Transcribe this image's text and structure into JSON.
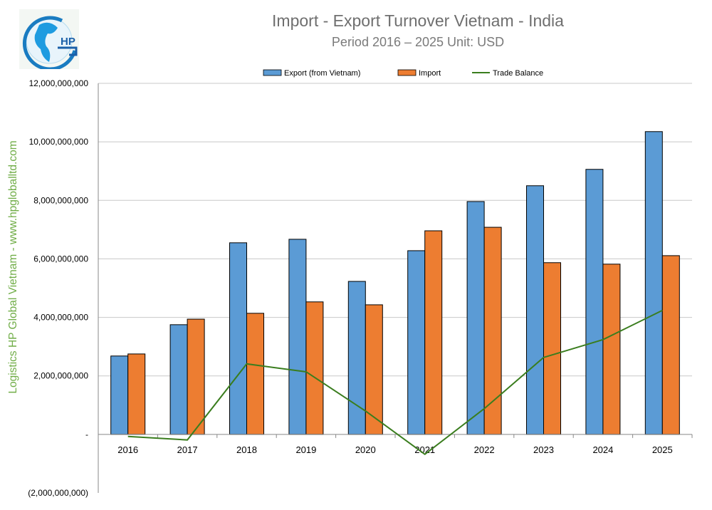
{
  "logo_text": "HP",
  "side_label": "Logistics HP Global Vietnam - www.hpgloballtd.com",
  "chart_data": {
    "type": "bar",
    "title": "Import - Export Turnover Vietnam - India",
    "subtitle": "Period 2016 – 2025  Unit: USD",
    "categories": [
      "2016",
      "2017",
      "2018",
      "2019",
      "2020",
      "2021",
      "2022",
      "2023",
      "2024",
      "2025"
    ],
    "series": [
      {
        "name": "Export (from Vietnam)",
        "type": "bar",
        "color": "#5b9bd5",
        "values": [
          2680000000,
          3750000000,
          6550000000,
          6670000000,
          5230000000,
          6280000000,
          7960000000,
          8500000000,
          9060000000,
          10350000000
        ]
      },
      {
        "name": "Import",
        "type": "bar",
        "color": "#ed7d31",
        "values": [
          2750000000,
          3940000000,
          4140000000,
          4530000000,
          4430000000,
          6960000000,
          7080000000,
          5870000000,
          5820000000,
          6110000000
        ]
      },
      {
        "name": "Trade Balance",
        "type": "line",
        "color": "#3a7d1e",
        "values": [
          -70000000,
          -190000000,
          2410000000,
          2140000000,
          800000000,
          -680000000,
          880000000,
          2630000000,
          3240000000,
          4240000000
        ]
      }
    ],
    "ylim": [
      -2000000000,
      12000000000
    ],
    "yticks": [
      "(2,000,000,000)",
      "-",
      "2,000,000,000",
      "4,000,000,000",
      "6,000,000,000",
      "8,000,000,000",
      "10,000,000,000",
      "12,000,000,000"
    ],
    "ytick_values": [
      -2000000000,
      0,
      2000000000,
      4000000000,
      6000000000,
      8000000000,
      10000000000,
      12000000000
    ],
    "grid": true,
    "legend": "top"
  }
}
